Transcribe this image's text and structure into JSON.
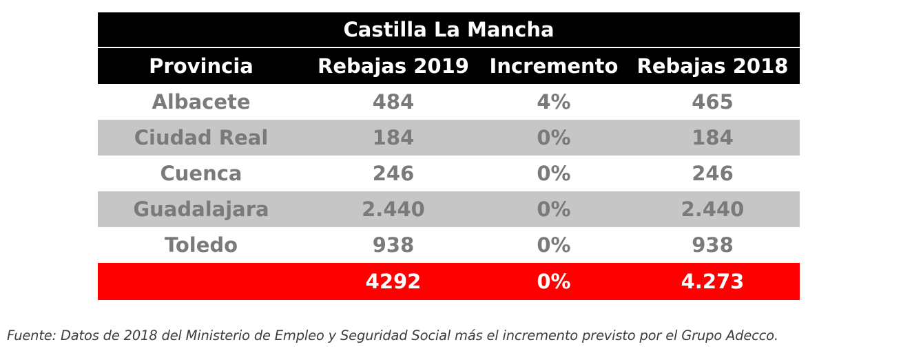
{
  "table": {
    "title": "Castilla La Mancha",
    "headers": [
      "Provincia",
      "Rebajas 2019",
      "Incremento",
      "Rebajas 2018"
    ],
    "rows": [
      [
        "Albacete",
        "484",
        "4%",
        "465"
      ],
      [
        "Ciudad Real",
        "184",
        "0%",
        "184"
      ],
      [
        "Cuenca",
        "246",
        "0%",
        "246"
      ],
      [
        "Guadalajara",
        "2.440",
        "0%",
        "2.440"
      ],
      [
        "Toledo",
        "938",
        "0%",
        "938"
      ]
    ],
    "total": [
      "",
      "4292",
      "0%",
      "4.273"
    ]
  },
  "footnote": "Fuente: Datos de 2018 del Ministerio de Empleo y Seguridad Social más el incremento previsto por el Grupo Adecco.",
  "colors": {
    "header_bg": "#000000",
    "stripe_gray": "#c6c6c6",
    "data_text": "#7a7a7a",
    "total_bg": "#fe0000"
  }
}
